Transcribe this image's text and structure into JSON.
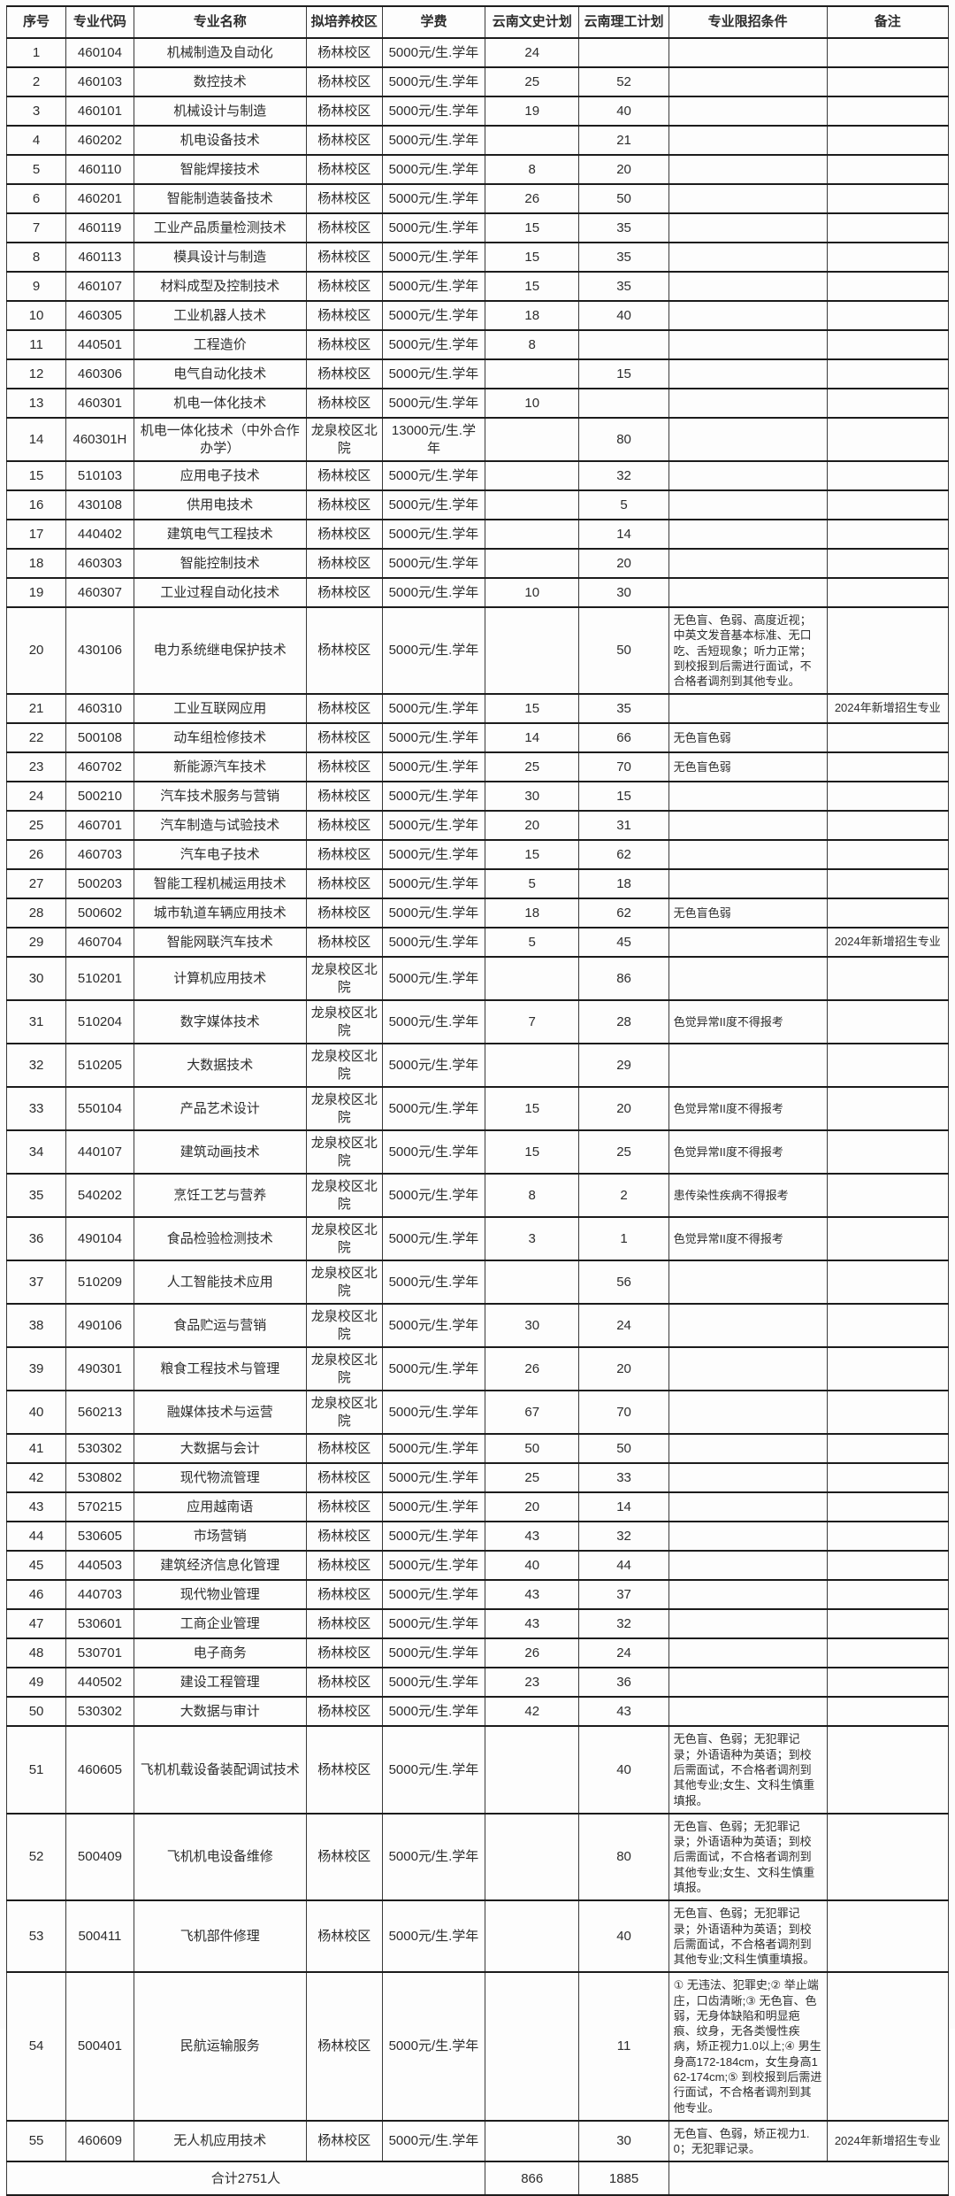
{
  "table": {
    "headers": [
      "序号",
      "专业代码",
      "专业名称",
      "拟培养校区",
      "学费",
      "云南文史计划",
      "云南理工计划",
      "专业限招条件",
      "备注"
    ],
    "rows": [
      [
        "1",
        "460104",
        "机械制造及自动化",
        "杨林校区",
        "5000元/生.学年",
        "24",
        "",
        "",
        ""
      ],
      [
        "2",
        "460103",
        "数控技术",
        "杨林校区",
        "5000元/生.学年",
        "25",
        "52",
        "",
        ""
      ],
      [
        "3",
        "460101",
        "机械设计与制造",
        "杨林校区",
        "5000元/生.学年",
        "19",
        "40",
        "",
        ""
      ],
      [
        "4",
        "460202",
        "机电设备技术",
        "杨林校区",
        "5000元/生.学年",
        "",
        "21",
        "",
        ""
      ],
      [
        "5",
        "460110",
        "智能焊接技术",
        "杨林校区",
        "5000元/生.学年",
        "8",
        "20",
        "",
        ""
      ],
      [
        "6",
        "460201",
        "智能制造装备技术",
        "杨林校区",
        "5000元/生.学年",
        "26",
        "50",
        "",
        ""
      ],
      [
        "7",
        "460119",
        "工业产品质量检测技术",
        "杨林校区",
        "5000元/生.学年",
        "15",
        "35",
        "",
        ""
      ],
      [
        "8",
        "460113",
        "模具设计与制造",
        "杨林校区",
        "5000元/生.学年",
        "15",
        "35",
        "",
        ""
      ],
      [
        "9",
        "460107",
        "材料成型及控制技术",
        "杨林校区",
        "5000元/生.学年",
        "15",
        "35",
        "",
        ""
      ],
      [
        "10",
        "460305",
        "工业机器人技术",
        "杨林校区",
        "5000元/生.学年",
        "18",
        "40",
        "",
        ""
      ],
      [
        "11",
        "440501",
        "工程造价",
        "杨林校区",
        "5000元/生.学年",
        "8",
        "",
        "",
        ""
      ],
      [
        "12",
        "460306",
        "电气自动化技术",
        "杨林校区",
        "5000元/生.学年",
        "",
        "15",
        "",
        ""
      ],
      [
        "13",
        "460301",
        "机电一体化技术",
        "杨林校区",
        "5000元/生.学年",
        "10",
        "",
        "",
        ""
      ],
      [
        "14",
        "460301H",
        "机电一体化技术（中外合作办学）",
        "龙泉校区北院",
        "13000元/生.学年",
        "",
        "80",
        "",
        ""
      ],
      [
        "15",
        "510103",
        "应用电子技术",
        "杨林校区",
        "5000元/生.学年",
        "",
        "32",
        "",
        ""
      ],
      [
        "16",
        "430108",
        "供用电技术",
        "杨林校区",
        "5000元/生.学年",
        "",
        "5",
        "",
        ""
      ],
      [
        "17",
        "440402",
        "建筑电气工程技术",
        "杨林校区",
        "5000元/生.学年",
        "",
        "14",
        "",
        ""
      ],
      [
        "18",
        "460303",
        "智能控制技术",
        "杨林校区",
        "5000元/生.学年",
        "",
        "20",
        "",
        ""
      ],
      [
        "19",
        "460307",
        "工业过程自动化技术",
        "杨林校区",
        "5000元/生.学年",
        "10",
        "30",
        "",
        ""
      ],
      [
        "20",
        "430106",
        "电力系统继电保护技术",
        "杨林校区",
        "5000元/生.学年",
        "",
        "50",
        "无色盲、色弱、高度近视；中英文发音基本标准、无口吃、舌短现象；听力正常；到校报到后需进行面试，不合格者调剂到其他专业。",
        ""
      ],
      [
        "21",
        "460310",
        "工业互联网应用",
        "杨林校区",
        "5000元/生.学年",
        "15",
        "35",
        "",
        "2024年新增招生专业"
      ],
      [
        "22",
        "500108",
        "动车组检修技术",
        "杨林校区",
        "5000元/生.学年",
        "14",
        "66",
        "无色盲色弱",
        ""
      ],
      [
        "23",
        "460702",
        "新能源汽车技术",
        "杨林校区",
        "5000元/生.学年",
        "25",
        "70",
        "无色盲色弱",
        ""
      ],
      [
        "24",
        "500210",
        "汽车技术服务与营销",
        "杨林校区",
        "5000元/生.学年",
        "30",
        "15",
        "",
        ""
      ],
      [
        "25",
        "460701",
        "汽车制造与试验技术",
        "杨林校区",
        "5000元/生.学年",
        "20",
        "31",
        "",
        ""
      ],
      [
        "26",
        "460703",
        "汽车电子技术",
        "杨林校区",
        "5000元/生.学年",
        "15",
        "62",
        "",
        ""
      ],
      [
        "27",
        "500203",
        "智能工程机械运用技术",
        "杨林校区",
        "5000元/生.学年",
        "5",
        "18",
        "",
        ""
      ],
      [
        "28",
        "500602",
        "城市轨道车辆应用技术",
        "杨林校区",
        "5000元/生.学年",
        "18",
        "62",
        "无色盲色弱",
        ""
      ],
      [
        "29",
        "460704",
        "智能网联汽车技术",
        "杨林校区",
        "5000元/生.学年",
        "5",
        "45",
        "",
        "2024年新增招生专业"
      ],
      [
        "30",
        "510201",
        "计算机应用技术",
        "龙泉校区北院",
        "5000元/生.学年",
        "",
        "86",
        "",
        ""
      ],
      [
        "31",
        "510204",
        "数字媒体技术",
        "龙泉校区北院",
        "5000元/生.学年",
        "7",
        "28",
        "色觉异常II度不得报考",
        ""
      ],
      [
        "32",
        "510205",
        "大数据技术",
        "龙泉校区北院",
        "5000元/生.学年",
        "",
        "29",
        "",
        ""
      ],
      [
        "33",
        "550104",
        "产品艺术设计",
        "龙泉校区北院",
        "5000元/生.学年",
        "15",
        "20",
        "色觉异常II度不得报考",
        ""
      ],
      [
        "34",
        "440107",
        "建筑动画技术",
        "龙泉校区北院",
        "5000元/生.学年",
        "15",
        "25",
        "色觉异常II度不得报考",
        ""
      ],
      [
        "35",
        "540202",
        "烹饪工艺与营养",
        "龙泉校区北院",
        "5000元/生.学年",
        "8",
        "2",
        "患传染性疾病不得报考",
        ""
      ],
      [
        "36",
        "490104",
        "食品检验检测技术",
        "龙泉校区北院",
        "5000元/生.学年",
        "3",
        "1",
        "色觉异常II度不得报考",
        ""
      ],
      [
        "37",
        "510209",
        "人工智能技术应用",
        "龙泉校区北院",
        "5000元/生.学年",
        "",
        "56",
        "",
        ""
      ],
      [
        "38",
        "490106",
        "食品贮运与营销",
        "龙泉校区北院",
        "5000元/生.学年",
        "30",
        "24",
        "",
        ""
      ],
      [
        "39",
        "490301",
        "粮食工程技术与管理",
        "龙泉校区北院",
        "5000元/生.学年",
        "26",
        "20",
        "",
        ""
      ],
      [
        "40",
        "560213",
        "融媒体技术与运营",
        "龙泉校区北院",
        "5000元/生.学年",
        "67",
        "70",
        "",
        ""
      ],
      [
        "41",
        "530302",
        "大数据与会计",
        "杨林校区",
        "5000元/生.学年",
        "50",
        "50",
        "",
        ""
      ],
      [
        "42",
        "530802",
        "现代物流管理",
        "杨林校区",
        "5000元/生.学年",
        "25",
        "33",
        "",
        ""
      ],
      [
        "43",
        "570215",
        "应用越南语",
        "杨林校区",
        "5000元/生.学年",
        "20",
        "14",
        "",
        ""
      ],
      [
        "44",
        "530605",
        "市场营销",
        "杨林校区",
        "5000元/生.学年",
        "43",
        "32",
        "",
        ""
      ],
      [
        "45",
        "440503",
        "建筑经济信息化管理",
        "杨林校区",
        "5000元/生.学年",
        "40",
        "44",
        "",
        ""
      ],
      [
        "46",
        "440703",
        "现代物业管理",
        "杨林校区",
        "5000元/生.学年",
        "43",
        "37",
        "",
        ""
      ],
      [
        "47",
        "530601",
        "工商企业管理",
        "杨林校区",
        "5000元/生.学年",
        "43",
        "32",
        "",
        ""
      ],
      [
        "48",
        "530701",
        "电子商务",
        "杨林校区",
        "5000元/生.学年",
        "26",
        "24",
        "",
        ""
      ],
      [
        "49",
        "440502",
        "建设工程管理",
        "杨林校区",
        "5000元/生.学年",
        "23",
        "36",
        "",
        ""
      ],
      [
        "50",
        "530302",
        "大数据与审计",
        "杨林校区",
        "5000元/生.学年",
        "42",
        "43",
        "",
        ""
      ],
      [
        "51",
        "460605",
        "飞机机载设备装配调试技术",
        "杨林校区",
        "5000元/生.学年",
        "",
        "40",
        "无色盲、色弱；无犯罪记录；外语语种为英语；到校后需面试，不合格者调剂到其他专业;女生、文科生慎重填报。",
        ""
      ],
      [
        "52",
        "500409",
        "飞机机电设备维修",
        "杨林校区",
        "5000元/生.学年",
        "",
        "80",
        "无色盲、色弱；无犯罪记录；外语语种为英语；到校后需面试，不合格者调剂到其他专业;女生、文科生慎重填报。",
        ""
      ],
      [
        "53",
        "500411",
        "飞机部件修理",
        "杨林校区",
        "5000元/生.学年",
        "",
        "40",
        "无色盲、色弱；无犯罪记录；外语语种为英语；到校后需面试，不合格者调剂到其他专业;文科生慎重填报。",
        ""
      ],
      [
        "54",
        "500401",
        "民航运输服务",
        "杨林校区",
        "5000元/生.学年",
        "",
        "11",
        "① 无违法、犯罪史;② 举止端庄，口齿清晰;③ 无色盲、色弱，无身体缺陷和明显疤痕、纹身，无各类慢性疾病，矫正视力1.0以上;④ 男生身高172-184cm，女生身高162-174cm;⑤ 到校报到后需进行面试，不合格者调剂到其他专业。",
        ""
      ],
      [
        "55",
        "460609",
        "无人机应用技术",
        "杨林校区",
        "5000元/生.学年",
        "",
        "30",
        "无色盲、色弱，矫正视力1.0；无犯罪记录。",
        "2024年新增招生专业"
      ]
    ],
    "footer": {
      "total_label": "合计2751人",
      "wenshi_total": "866",
      "ligong_total": "1885"
    }
  },
  "colors": {
    "border": "#1c1c1c",
    "text": "#2d2d2d",
    "background": "#fdfdfd"
  }
}
